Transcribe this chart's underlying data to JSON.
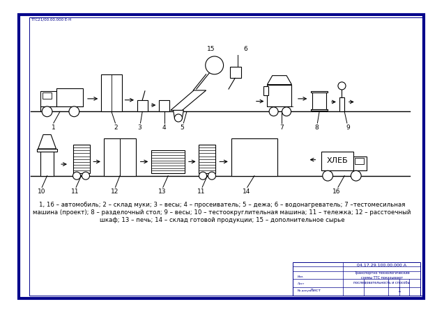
{
  "bg_color": "#ffffff",
  "line_color": "#000000",
  "blue_color": "#00008B",
  "caption_line1": "1, 16 – автомобиль; 2 – склад муки; 3 – весы; 4 – просеиватель; 5 – дежа; 6 – водонагреватель; 7 –тестомесильная",
  "caption_line2": "машина (проект); 8 – разделочный стол; 9 – весы; 10 – тестоокруглительная машина; 11 – тележка; 12 – расстоечный",
  "caption_line3": "шкаф; 13 – печь; 14 – склад готовой продукции; 15 – дополнительное сырье"
}
